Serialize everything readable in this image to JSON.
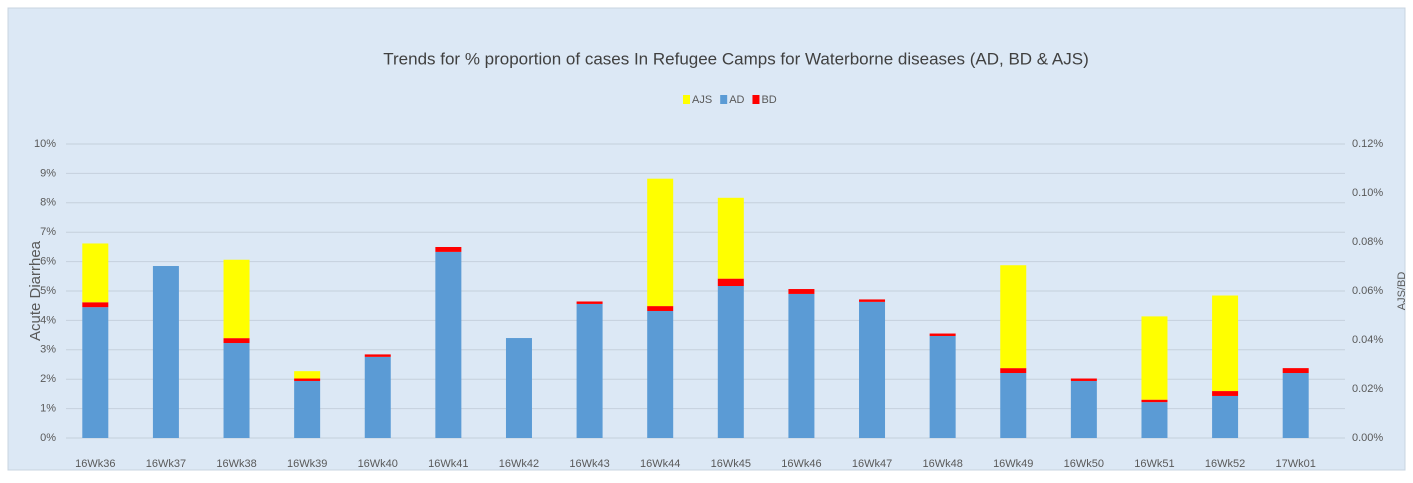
{
  "chart_data": {
    "type": "bar",
    "stacked": true,
    "title": "Trends for % proportion of cases In Refugee Camps for Waterborne diseases (AD, BD & AJS)",
    "y_label": "Acute Diarrhea",
    "y2_label": "AJS/BD",
    "categories": [
      "16Wk36",
      "16Wk37",
      "16Wk38",
      "16Wk39",
      "16Wk40",
      "16Wk41",
      "16Wk42",
      "16Wk43",
      "16Wk44",
      "16Wk45",
      "16Wk46",
      "16Wk47",
      "16Wk48",
      "16Wk49",
      "16Wk50",
      "16Wk51",
      "16Wk52",
      "17Wk01"
    ],
    "series": [
      {
        "name": "AJS",
        "color": "#ffff00",
        "axis": "y2",
        "values": [
          0.024,
          0,
          0.032,
          0.003,
          0,
          0,
          0,
          0,
          0.052,
          0.033,
          0,
          0,
          0,
          0.042,
          0,
          0.034,
          0.039,
          0
        ]
      },
      {
        "name": "AD",
        "color": "#5b9bd5",
        "values": [
          4.45,
          5.85,
          3.23,
          1.94,
          2.76,
          6.33,
          3.4,
          4.56,
          4.32,
          5.17,
          4.9,
          4.63,
          3.47,
          2.21,
          1.94,
          1.22,
          1.43,
          2.21
        ]
      },
      {
        "name": "BD",
        "color": "#ff0000",
        "axis": "y2",
        "values": [
          0.002,
          0,
          0.002,
          0.001,
          0.001,
          0.002,
          0,
          0.001,
          0.002,
          0.003,
          0.002,
          0.001,
          0.001,
          0.002,
          0.001,
          0.001,
          0.002,
          0.002
        ]
      }
    ],
    "ylim": [
      0,
      10
    ],
    "yticks": [
      {
        "value": 0,
        "label": "0%"
      },
      {
        "value": 1,
        "label": "1%"
      },
      {
        "value": 2,
        "label": "2%"
      },
      {
        "value": 3,
        "label": "3%"
      },
      {
        "value": 4,
        "label": "4%"
      },
      {
        "value": 5,
        "label": "5%"
      },
      {
        "value": 6,
        "label": "6%"
      },
      {
        "value": 7,
        "label": "7%"
      },
      {
        "value": 8,
        "label": "8%"
      },
      {
        "value": 9,
        "label": "9%"
      },
      {
        "value": 10,
        "label": "10%"
      }
    ],
    "y2lim": [
      0,
      0.12
    ],
    "y2ticks": [
      {
        "value": 0,
        "label": "0.00%"
      },
      {
        "value": 0.02,
        "label": "0.02%"
      },
      {
        "value": 0.04,
        "label": "0.04%"
      },
      {
        "value": 0.06,
        "label": "0.06%"
      },
      {
        "value": 0.08,
        "label": "0.08%"
      },
      {
        "value": 0.1,
        "label": "0.10%"
      },
      {
        "value": 0.12,
        "label": "0.12%"
      }
    ],
    "grid": true,
    "legend": "top"
  }
}
